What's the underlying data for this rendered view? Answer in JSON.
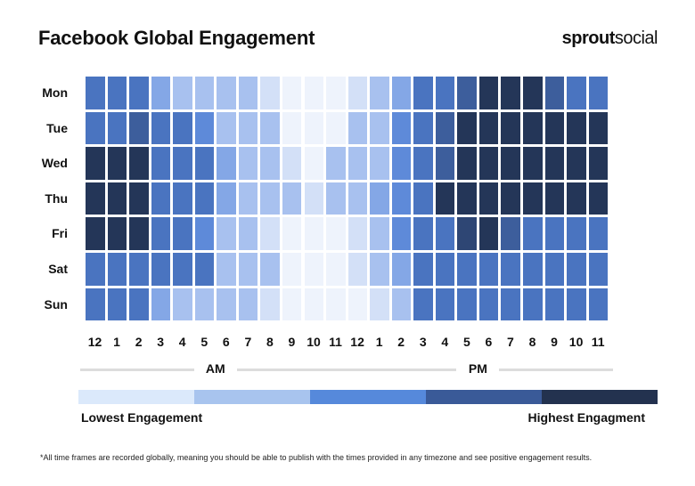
{
  "header": {
    "title": "Facebook Global Engagement",
    "brand_bold": "sprout",
    "brand_light": "social"
  },
  "chart_data": {
    "type": "heatmap",
    "title": "Facebook Global Engagement",
    "rows": [
      "Mon",
      "Tue",
      "Wed",
      "Thu",
      "Fri",
      "Sat",
      "Sun"
    ],
    "columns": [
      "12",
      "1",
      "2",
      "3",
      "4",
      "5",
      "6",
      "7",
      "8",
      "9",
      "10",
      "11",
      "12",
      "1",
      "2",
      "3",
      "4",
      "5",
      "6",
      "7",
      "8",
      "9",
      "10",
      "11"
    ],
    "column_groups": [
      {
        "label": "AM",
        "from": 0,
        "to": 11
      },
      {
        "label": "PM",
        "from": 12,
        "to": 23
      }
    ],
    "value_scale": "engagement level 1 (lowest) to 9 (highest)",
    "values": [
      [
        6,
        6,
        6,
        4,
        3,
        3,
        3,
        3,
        2,
        1,
        1,
        1,
        2,
        3,
        4,
        6,
        6,
        7,
        9,
        9,
        9,
        7,
        6,
        6
      ],
      [
        6,
        6,
        7,
        6,
        6,
        5,
        3,
        3,
        3,
        1,
        1,
        1,
        3,
        3,
        5,
        6,
        7,
        9,
        9,
        9,
        9,
        9,
        9,
        9
      ],
      [
        9,
        9,
        9,
        6,
        6,
        6,
        4,
        3,
        3,
        2,
        1,
        3,
        3,
        3,
        5,
        6,
        7,
        9,
        9,
        9,
        9,
        9,
        9,
        9
      ],
      [
        9,
        9,
        9,
        6,
        6,
        6,
        4,
        3,
        3,
        3,
        2,
        3,
        3,
        4,
        5,
        6,
        9,
        9,
        9,
        9,
        9,
        9,
        9,
        9
      ],
      [
        9,
        9,
        9,
        6,
        6,
        5,
        3,
        3,
        2,
        1,
        1,
        1,
        2,
        3,
        5,
        6,
        6,
        8,
        9,
        7,
        6,
        6,
        6,
        6
      ],
      [
        6,
        6,
        6,
        6,
        6,
        6,
        3,
        3,
        3,
        1,
        1,
        1,
        2,
        3,
        4,
        6,
        6,
        6,
        6,
        6,
        6,
        6,
        6,
        6
      ],
      [
        6,
        6,
        6,
        4,
        3,
        3,
        3,
        3,
        2,
        1,
        1,
        1,
        1,
        2,
        3,
        6,
        6,
        6,
        6,
        6,
        6,
        6,
        6,
        6
      ]
    ],
    "color_scale": {
      "1": "#eef3fc",
      "2": "#d3e0f7",
      "3": "#a8c1ef",
      "4": "#84a7e6",
      "5": "#5e8ad9",
      "6": "#4a74c0",
      "7": "#3d5e9c",
      "8": "#2e4674",
      "9": "#243658"
    },
    "legend": {
      "colors": [
        "#dbe9fb",
        "#a8c4ee",
        "#5689db",
        "#3a5a98",
        "#23324f"
      ],
      "low_label": "Lowest Engagement",
      "high_label": "Highest Engagment"
    }
  },
  "footnote": "*All time frames are recorded globally, meaning you should be able to publish with the times provided in any timezone and see positive engagement results."
}
